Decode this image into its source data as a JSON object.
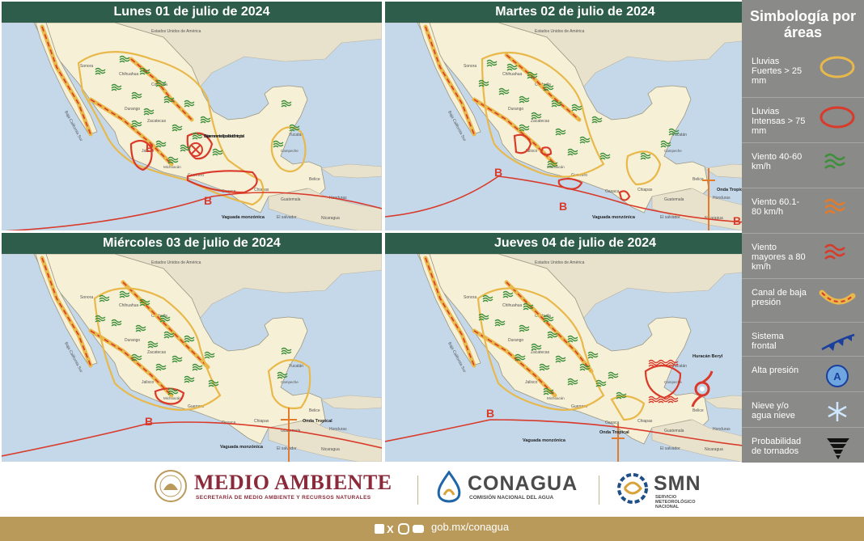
{
  "panels": [
    {
      "title": "Lunes 01 de julio de 2024",
      "labels": {
        "usa": "Estados Unidos de América",
        "sonora": "Sonora",
        "chihuahua": "Chihuahua",
        "coahuila": "Coahuila",
        "durango": "Durango",
        "zacatecas": "Zacatecas",
        "bcs": "Baja California Sur",
        "jalisco": "Jalisco",
        "michoacan": "Michoacán",
        "guerrero": "Guerrero",
        "oaxaca": "Oaxaca",
        "chiapas": "Chiapas",
        "yucatan": "Yucatán",
        "campeche": "Campeche",
        "belice": "Belice",
        "guatemala": "Guatemala",
        "honduras": "Honduras",
        "elsalvador": "El salvador",
        "nicaragua": "Nicaragua"
      },
      "annotations": [
        "Baja remanente del posible ciclón tropical",
        "Vaguada monzónica"
      ],
      "pressure": [
        "B",
        "B"
      ]
    },
    {
      "title": "Martes 02 de julio de 2024",
      "labels": {
        "usa": "Estados Unidos de América",
        "sonora": "Sonora",
        "chihuahua": "Chihuahua",
        "coahuila": "Coahuila",
        "durango": "Durango",
        "zacatecas": "Zacatecas",
        "bcs": "Baja California Sur",
        "jalisco": "Jalisco",
        "michoacan": "Michoacán",
        "guerrero": "Guerrero",
        "oaxaca": "Oaxaca",
        "chiapas": "Chiapas",
        "yucatan": "Yucatán",
        "campeche": "Campeche",
        "belice": "Belice",
        "guatemala": "Guatemala",
        "honduras": "Honduras",
        "elsalvador": "El salvador",
        "nicaragua": "Nicaragua"
      },
      "annotations": [
        "Onda Tropical",
        "Vaguada monzónica"
      ],
      "pressure": [
        "B",
        "B",
        "B"
      ]
    },
    {
      "title": "Miércoles 03 de julio de 2024",
      "labels": {
        "usa": "Estados Unidos de América",
        "sonora": "Sonora",
        "chihuahua": "Chihuahua",
        "coahuila": "Coahuila",
        "durango": "Durango",
        "zacatecas": "Zacatecas",
        "bcs": "Baja California Sur",
        "jalisco": "Jalisco",
        "michoacan": "Michoacán",
        "guerrero": "Guerrero",
        "oaxaca": "Oaxaca",
        "chiapas": "Chiapas",
        "yucatan": "Yucatán",
        "campeche": "Campeche",
        "belice": "Belice",
        "guatemala": "Guatemala",
        "honduras": "Honduras",
        "elsalvador": "El salvador",
        "nicaragua": "Nicaragua"
      },
      "annotations": [
        "Onda Tropical",
        "Vaguada monzónica"
      ],
      "pressure": [
        "B"
      ]
    },
    {
      "title": "Jueves 04 de julio de 2024",
      "labels": {
        "usa": "Estados Unidos de América",
        "sonora": "Sonora",
        "chihuahua": "Chihuahua",
        "coahuila": "Coahuila",
        "durango": "Durango",
        "zacatecas": "Zacatecas",
        "bcs": "Baja California Sur",
        "jalisco": "Jalisco",
        "michoacan": "Michoacán",
        "guerrero": "Guerrero",
        "oaxaca": "Oaxaca",
        "chiapas": "Chiapas",
        "yucatan": "Yucatán",
        "campeche": "Campeche",
        "belice": "Belice",
        "guatemala": "Guatemala",
        "honduras": "Honduras",
        "elsalvador": "El salvador",
        "nicaragua": "Nicaragua"
      },
      "annotations": [
        "Huracán Beryl",
        "Onda Tropical",
        "Vaguada monzónica"
      ],
      "pressure": [
        "B"
      ]
    }
  ],
  "legend": {
    "title": "Simbología por áreas",
    "items": [
      {
        "label": "Lluvias Fuertes > 25 mm",
        "icon": "yellow-ellipse-icon"
      },
      {
        "label": "Lluvias Intensas > 75 mm",
        "icon": "red-ellipse-icon"
      },
      {
        "label": "Viento 40-60 km/h",
        "icon": "green-wind-icon"
      },
      {
        "label": "Viento 60.1-80 km/h",
        "icon": "orange-wind-icon"
      },
      {
        "label": "Viento mayores a 80 km/h",
        "icon": "red-wind-icon"
      },
      {
        "label": "Canal de baja presión",
        "icon": "trough-icon"
      },
      {
        "label": "Sistema frontal",
        "icon": "cold-front-icon"
      },
      {
        "label": "Alta presión",
        "icon": "high-pressure-icon"
      },
      {
        "label": "Nieve y/o agua nieve",
        "icon": "snowflake-icon"
      },
      {
        "label": "Probabilidad de tornados",
        "icon": "tornado-icon"
      }
    ]
  },
  "footer": {
    "medio_ambiente": "MEDIO AMBIENTE",
    "medio_ambiente_sub": "SECRETARÍA DE MEDIO AMBIENTE Y RECURSOS NATURALES",
    "conagua": "CONAGUA",
    "conagua_sub": "COMISIÓN NACIONAL DEL AGUA",
    "smn": "SMN",
    "smn_sub": "SERVICIO METEOROLÓGICO NACIONAL",
    "url": "gob.mx/conagua"
  },
  "colors": {
    "title_bar": "#2e5d4c",
    "legend_bg": "#8a8a88",
    "footer_bar": "#b99a5a",
    "sea": "#c4d8ea",
    "land": "#f6f0d6",
    "rain_strong": "#e8b84a",
    "rain_intense": "#d93a2a",
    "wind": "#3e8f3a"
  }
}
